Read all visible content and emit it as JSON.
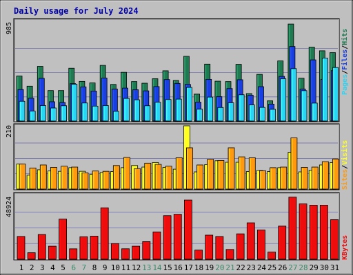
{
  "title": "Daily usage for July 2024",
  "colors": {
    "background": "#bfbfbf",
    "title": "#0000a8",
    "hits": "#1f7a52",
    "files": "#1a3fe0",
    "pages": "#2ad4f4",
    "visits": "#ffff20",
    "sites": "#ff9a10",
    "kbytes": "#ee0c0c",
    "weekend_day_label": "#3a8a6a",
    "gridline": "#3f3fb0"
  },
  "chart_data": {
    "type": "bar",
    "categories": [
      "1",
      "2",
      "3",
      "4",
      "5",
      "6",
      "7",
      "8",
      "9",
      "10",
      "11",
      "12",
      "13",
      "14",
      "15",
      "16",
      "17",
      "18",
      "19",
      "20",
      "21",
      "22",
      "23",
      "24",
      "25",
      "26",
      "27",
      "28",
      "29",
      "30",
      "31"
    ],
    "weekend_days": [
      "6",
      "7",
      "13",
      "14",
      "20",
      "21",
      "27",
      "28"
    ],
    "panels": [
      {
        "name": "traffic",
        "ymax_label": "985",
        "ylim": [
          0,
          985
        ],
        "legend": [
          "Pages",
          "/",
          "Files",
          "/",
          "Hits"
        ],
        "series": [
          {
            "name": "Hits",
            "values": [
              442,
              342,
              536,
              299,
              299,
              518,
              389,
              374,
              546,
              359,
              478,
              387,
              371,
              415,
              493,
              398,
              635,
              264,
              558,
              391,
              387,
              556,
              269,
              458,
              198,
              590,
              951,
              420,
              725,
              689,
              671
            ]
          },
          {
            "name": "Files",
            "values": [
              309,
              224,
              419,
              189,
              182,
              367,
              335,
              294,
              422,
              314,
              323,
              307,
              296,
              338,
              407,
              369,
              359,
              185,
              409,
              239,
              319,
              405,
              253,
              337,
              166,
              438,
              731,
              314,
              600,
              409,
              495
            ]
          },
          {
            "name": "Pages",
            "values": [
              194,
              97,
              152,
              128,
              150,
              361,
              177,
              146,
              152,
              95,
              222,
              208,
              150,
              184,
              211,
              215,
              330,
              116,
              235,
              133,
              179,
              258,
              158,
              134,
              115,
              415,
              514,
              298,
              176,
              618,
              525
            ]
          }
        ]
      },
      {
        "name": "visitors",
        "ymax_label": "210",
        "ylim": [
          0,
          210
        ],
        "legend": [
          "Sites",
          "/",
          "Visits"
        ],
        "series": [
          {
            "name": "Visits",
            "values": [
              83,
              46,
              64,
              60,
              59,
              71,
              59,
              49,
              55,
              58,
              71,
              78,
              73,
              88,
              72,
              66,
              210,
              57,
              81,
              94,
              89,
              89,
              58,
              62,
              58,
              71,
              122,
              57,
              63,
              80,
              88
            ]
          },
          {
            "name": "Sites",
            "values": [
              83,
              70,
              80,
              72,
              76,
              73,
              54,
              60,
              59,
              78,
              105,
              68,
              86,
              82,
              76,
              104,
              137,
              80,
              99,
              95,
              137,
              107,
              104,
              61,
              71,
              73,
              170,
              72,
              73,
              91,
              100
            ]
          }
        ]
      },
      {
        "name": "bytes",
        "ymax_label": "48924",
        "ylim": [
          0,
          48924
        ],
        "legend": [
          "KBytes"
        ],
        "series": [
          {
            "name": "KBytes",
            "values": [
              17220,
              4904,
              18704,
              9845,
              30352,
              7871,
              16998,
              17466,
              38902,
              11811,
              7907,
              9845,
              13300,
              20662,
              32936,
              34000,
              44756,
              6893,
              18223,
              17200,
              7379,
              19194,
              27548,
              22144,
              5400,
              25058,
              47000,
              41892,
              40893,
              40893,
              29919
            ]
          }
        ]
      }
    ]
  }
}
